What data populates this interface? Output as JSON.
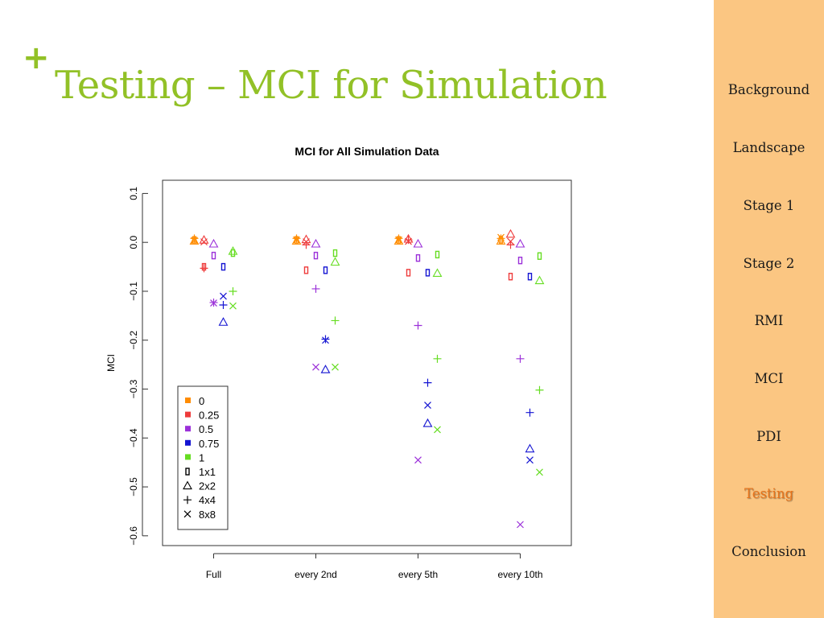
{
  "slide": {
    "plus_symbol": "+",
    "title": "Testing – MCI for Simulation"
  },
  "sidebar": {
    "items": [
      {
        "label": "Background",
        "active": false
      },
      {
        "label": "Landscape",
        "active": false
      },
      {
        "label": "Stage 1",
        "active": false
      },
      {
        "label": "Stage 2",
        "active": false
      },
      {
        "label": "RMI",
        "active": false
      },
      {
        "label": "MCI",
        "active": false
      },
      {
        "label": "PDI",
        "active": false
      },
      {
        "label": "Testing",
        "active": true
      },
      {
        "label": "Conclusion",
        "active": false
      }
    ]
  },
  "colors": {
    "title": "#92c127",
    "sidebar_bg": "#fbc682",
    "active_nav": "#e8741b"
  },
  "chart_data": {
    "type": "scatter",
    "title": "MCI for All Simulation Data",
    "xlabel": "",
    "ylabel": "MCI",
    "categories": [
      "Full",
      "every 2nd",
      "every 5th",
      "every 10th"
    ],
    "ylim": [
      -0.62,
      0.127
    ],
    "yticks": [
      0.1,
      0.0,
      -0.1,
      -0.2,
      -0.3,
      -0.4,
      -0.5,
      -0.6
    ],
    "ytick_labels": [
      "0.1",
      "0.0",
      "−0.1",
      "−0.2",
      "−0.3",
      "−0.4",
      "−0.5",
      "−0.6"
    ],
    "grid": false,
    "legend_position": "bottom-left",
    "color_legend": [
      {
        "label": "0",
        "color": "#ff8c00"
      },
      {
        "label": "0.25",
        "color": "#ee3b3b"
      },
      {
        "label": "0.5",
        "color": "#9b30d9"
      },
      {
        "label": "0.75",
        "color": "#1414d2"
      },
      {
        "label": "1",
        "color": "#66dd22"
      }
    ],
    "shape_legend": [
      {
        "label": "1x1",
        "shape": "rect"
      },
      {
        "label": "2x2",
        "shape": "triangle"
      },
      {
        "label": "4x4",
        "shape": "plus"
      },
      {
        "label": "8x8",
        "shape": "cross"
      }
    ],
    "series": [
      {
        "group": "0",
        "shape": "1x1",
        "values": [
          0.005,
          0.005,
          0.005,
          0.005
        ]
      },
      {
        "group": "0",
        "shape": "2x2",
        "values": [
          0.003,
          0.003,
          0.003,
          0.003
        ]
      },
      {
        "group": "0",
        "shape": "4x4",
        "values": [
          0.008,
          0.008,
          0.008,
          0.008
        ]
      },
      {
        "group": "0",
        "shape": "8x8",
        "values": [
          0.004,
          0.005,
          0.005,
          0.01
        ]
      },
      {
        "group": "0.25",
        "shape": "1x1",
        "values": [
          -0.05,
          -0.057,
          -0.062,
          -0.07
        ]
      },
      {
        "group": "0.25",
        "shape": "2x2",
        "values": [
          0.005,
          0.006,
          0.007,
          0.017
        ]
      },
      {
        "group": "0.25",
        "shape": "4x4",
        "values": [
          -0.053,
          -0.005,
          0.005,
          -0.005
        ]
      },
      {
        "group": "0.25",
        "shape": "8x8",
        "values": [
          0.001,
          0.001,
          0.002,
          0.002
        ]
      },
      {
        "group": "0.5",
        "shape": "1x1",
        "values": [
          -0.027,
          -0.027,
          -0.032,
          -0.037
        ]
      },
      {
        "group": "0.5",
        "shape": "2x2",
        "values": [
          -0.003,
          -0.003,
          -0.003,
          -0.003
        ]
      },
      {
        "group": "0.5",
        "shape": "4x4",
        "values": [
          -0.123,
          -0.095,
          -0.17,
          -0.238
        ]
      },
      {
        "group": "0.5",
        "shape": "8x8",
        "values": [
          -0.124,
          -0.255,
          -0.445,
          -0.577
        ]
      },
      {
        "group": "0.75",
        "shape": "1x1",
        "values": [
          -0.05,
          -0.057,
          -0.062,
          -0.07
        ]
      },
      {
        "group": "0.75",
        "shape": "2x2",
        "values": [
          -0.163,
          -0.26,
          -0.37,
          -0.422
        ]
      },
      {
        "group": "0.75",
        "shape": "4x4",
        "values": [
          -0.128,
          -0.198,
          -0.287,
          -0.348
        ]
      },
      {
        "group": "0.75",
        "shape": "8x8",
        "values": [
          -0.11,
          -0.2,
          -0.333,
          -0.445
        ]
      },
      {
        "group": "1",
        "shape": "1x1",
        "values": [
          -0.022,
          -0.022,
          -0.025,
          -0.028
        ]
      },
      {
        "group": "1",
        "shape": "2x2",
        "values": [
          -0.018,
          -0.04,
          -0.063,
          -0.078
        ]
      },
      {
        "group": "1",
        "shape": "4x4",
        "values": [
          -0.1,
          -0.16,
          -0.238,
          -0.302
        ]
      },
      {
        "group": "1",
        "shape": "8x8",
        "values": [
          -0.13,
          -0.255,
          -0.383,
          -0.47
        ]
      }
    ]
  }
}
